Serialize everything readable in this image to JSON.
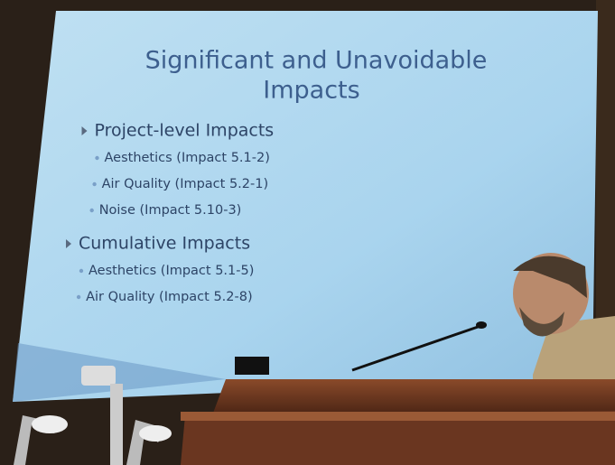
{
  "slide": {
    "title": [
      "Significant and Unavoidable",
      "Impacts"
    ],
    "sections": [
      {
        "heading": "Project-level Impacts",
        "items": [
          "Aesthetics (Impact 5.1-2)",
          "Air Quality (Impact 5.2-1)",
          "Noise (Impact 5.10-3)"
        ]
      },
      {
        "heading": "Cumulative Impacts",
        "items": [
          "Aesthetics (Impact 5.1-5)",
          "Air Quality (Impact 5.2-8)"
        ]
      }
    ]
  }
}
